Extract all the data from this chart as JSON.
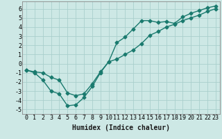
{
  "title": "",
  "xlabel": "Humidex (Indice chaleur)",
  "ylabel": "",
  "bg_color": "#cde8e5",
  "grid_color": "#aacfcc",
  "line_color": "#1a7a6e",
  "xlim": [
    -0.5,
    23.5
  ],
  "ylim": [
    -5.5,
    6.8
  ],
  "xticks": [
    0,
    1,
    2,
    3,
    4,
    5,
    6,
    7,
    8,
    9,
    10,
    11,
    12,
    13,
    14,
    15,
    16,
    17,
    18,
    19,
    20,
    21,
    22,
    23
  ],
  "yticks": [
    -5,
    -4,
    -3,
    -2,
    -1,
    0,
    1,
    2,
    3,
    4,
    5,
    6
  ],
  "line1_x": [
    0,
    1,
    2,
    3,
    4,
    5,
    6,
    7,
    8,
    9,
    10,
    11,
    12,
    13,
    14,
    15,
    16,
    17,
    18,
    19,
    20,
    21,
    22,
    23
  ],
  "line1_y": [
    -0.7,
    -1.0,
    -1.8,
    -3.0,
    -3.3,
    -4.6,
    -4.5,
    -3.7,
    -2.5,
    -1.0,
    0.2,
    2.3,
    2.9,
    3.8,
    4.7,
    4.7,
    4.5,
    4.6,
    4.4,
    5.1,
    5.5,
    5.8,
    6.1,
    6.3
  ],
  "line2_x": [
    0,
    1,
    2,
    3,
    4,
    5,
    6,
    7,
    8,
    9,
    10,
    11,
    12,
    13,
    14,
    15,
    16,
    17,
    18,
    19,
    20,
    21,
    22,
    23
  ],
  "line2_y": [
    -0.7,
    -0.9,
    -1.0,
    -1.5,
    -1.8,
    -3.2,
    -3.5,
    -3.3,
    -2.2,
    -0.9,
    0.2,
    0.5,
    1.0,
    1.5,
    2.2,
    3.1,
    3.5,
    4.0,
    4.3,
    4.7,
    5.0,
    5.3,
    5.7,
    6.0
  ],
  "marker": "D",
  "markersize": 2.5,
  "linewidth": 1.0,
  "xlabel_fontsize": 7,
  "tick_fontsize": 6
}
